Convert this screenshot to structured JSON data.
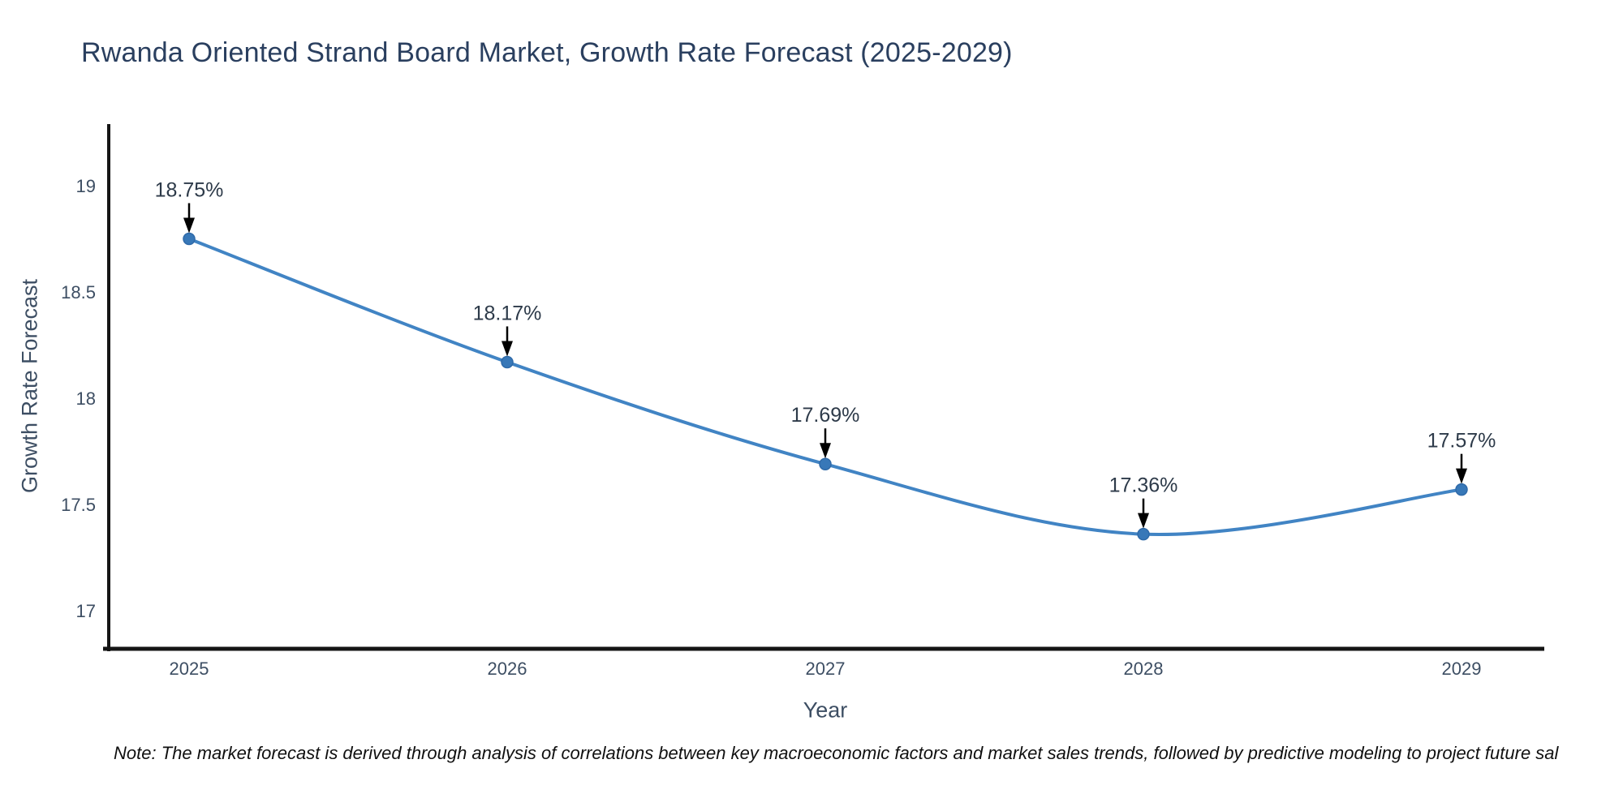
{
  "title": "Rwanda Oriented Strand Board Market, Growth Rate Forecast (2025-2029)",
  "note": "Note: The market forecast is derived through analysis of correlations between key macroeconomic factors and market sales trends, followed by predictive modeling to project future sal",
  "chart_data": {
    "type": "line",
    "title": "Rwanda Oriented Strand Board Market, Growth Rate Forecast (2025-2029)",
    "xlabel": "Year",
    "ylabel": "Growth Rate Forecast",
    "x": [
      2025,
      2026,
      2027,
      2028,
      2029
    ],
    "values": [
      18.75,
      18.17,
      17.69,
      17.36,
      17.57
    ],
    "point_labels": [
      "18.75%",
      "18.17%",
      "17.69%",
      "17.36%",
      "17.57%"
    ],
    "xtick_labels": [
      "2025",
      "2026",
      "2027",
      "2028",
      "2029"
    ],
    "yticks": [
      19,
      18.5,
      18,
      17.5,
      17
    ],
    "ytick_labels": [
      "19",
      "18.5",
      "18",
      "17.5",
      "17"
    ],
    "ylim": [
      16.82,
      19.29
    ],
    "grid": false,
    "legend": "none",
    "line_shape": "spline",
    "marker": "circle",
    "annotation_arrows": true,
    "colors": {
      "line": "#4184c4",
      "marker": "#3878b8",
      "marker_edge": "#2f6aa9",
      "axis": "#151515",
      "arrow": "#000000",
      "title": "#2a3f5f",
      "tick": "#3d4e63",
      "annotation": "#2d3a49",
      "note": "#101010",
      "background": "#ffffff"
    }
  }
}
